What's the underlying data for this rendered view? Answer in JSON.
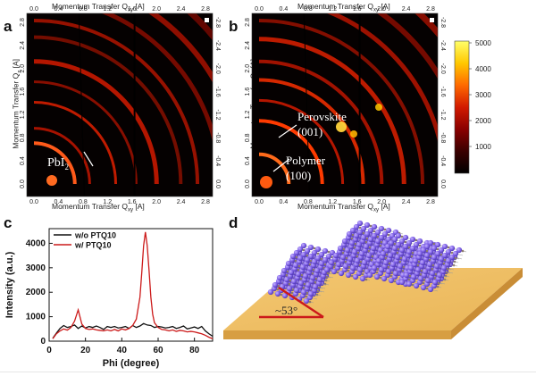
{
  "panels": {
    "a": {
      "label": "a",
      "annotation": "PbI",
      "annotation_sub": "2"
    },
    "b": {
      "label": "b",
      "annotation_perovskite": "Perovskite",
      "annotation_perovskite_idx": "(001)",
      "annotation_polymer": "Polymer",
      "annotation_polymer_idx": "(100)"
    },
    "c": {
      "label": "c"
    },
    "d": {
      "label": "d",
      "angle": "~53°"
    }
  },
  "giwaxs": {
    "top_axis_title": "Momentum Transfer Q",
    "top_axis_sub": "xy",
    "top_axis_unit": " [A]",
    "side_axis_title": "Momentum Transfer Q",
    "side_axis_sub": "z",
    "side_axis_unit": " [A]",
    "x_ticks": [
      "0.0",
      "0.4",
      "0.8",
      "1.2",
      "1.6",
      "2.0",
      "2.4",
      "2.8"
    ],
    "y_ticks": [
      "2.8",
      "2.4",
      "2.0",
      "1.6",
      "1.2",
      "0.8",
      "0.4",
      "0.0"
    ],
    "top_y_ticks": [
      "-2.8",
      "-2.4",
      "-2.0",
      "-1.6",
      "-1.2",
      "-0.8",
      "-0.4",
      "0.0"
    ]
  },
  "colorbar": {
    "ticks": [
      "5000",
      "4000",
      "3000",
      "2000",
      "1000"
    ],
    "colors": [
      "#000000",
      "#3a0000",
      "#8a0000",
      "#d21a00",
      "#ff6a00",
      "#ffc800",
      "#ffff6a"
    ]
  },
  "chart_data": {
    "type": "line",
    "xlabel": "Phi (degree)",
    "ylabel": "Intensity (a.u.)",
    "xlim": [
      0,
      90
    ],
    "ylim": [
      0,
      4600
    ],
    "x_ticks": [
      0,
      20,
      40,
      60,
      80
    ],
    "y_ticks": [
      0,
      1000,
      2000,
      3000,
      4000
    ],
    "legend_position": "top-left",
    "series": [
      {
        "name": "w/o PTQ10",
        "color": "#111111",
        "x": [
          2,
          4,
          6,
          8,
          10,
          12,
          14,
          16,
          18,
          20,
          22,
          24,
          26,
          28,
          30,
          32,
          34,
          36,
          38,
          40,
          42,
          44,
          46,
          48,
          50,
          52,
          54,
          56,
          58,
          60,
          62,
          64,
          66,
          68,
          70,
          72,
          74,
          76,
          78,
          80,
          82,
          84,
          86,
          88,
          90
        ],
        "y": [
          120,
          330,
          520,
          640,
          560,
          600,
          660,
          520,
          620,
          540,
          600,
          560,
          620,
          560,
          480,
          600,
          560,
          600,
          540,
          560,
          600,
          520,
          640,
          560,
          620,
          720,
          660,
          640,
          560,
          600,
          580,
          540,
          560,
          600,
          520,
          560,
          620,
          500,
          540,
          580,
          520,
          600,
          420,
          300,
          200
        ]
      },
      {
        "name": "w/ PTQ10",
        "color": "#cc1a1a",
        "x": [
          2,
          4,
          6,
          8,
          10,
          12,
          14,
          16,
          18,
          20,
          22,
          24,
          26,
          28,
          30,
          32,
          34,
          36,
          38,
          40,
          42,
          44,
          46,
          48,
          50,
          51,
          52,
          53,
          54,
          55,
          56,
          57,
          58,
          60,
          62,
          64,
          66,
          68,
          70,
          72,
          74,
          76,
          78,
          80,
          82,
          84,
          86,
          88,
          90
        ],
        "y": [
          100,
          300,
          420,
          500,
          450,
          560,
          820,
          1280,
          700,
          520,
          480,
          500,
          460,
          440,
          420,
          460,
          420,
          480,
          420,
          500,
          460,
          520,
          640,
          900,
          1800,
          2800,
          3900,
          4460,
          3900,
          2900,
          1800,
          1100,
          750,
          560,
          480,
          460,
          420,
          460,
          400,
          440,
          420,
          380,
          400,
          380,
          340,
          300,
          240,
          160,
          100
        ]
      }
    ]
  }
}
